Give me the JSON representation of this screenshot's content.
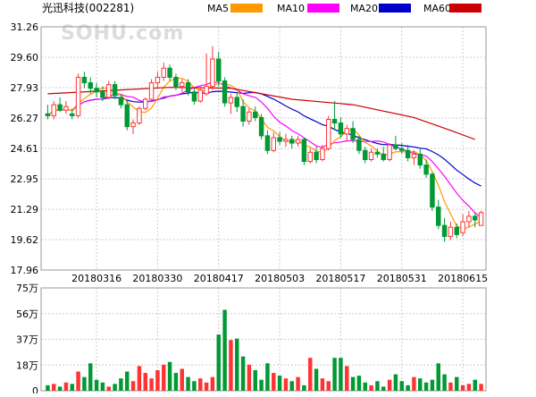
{
  "header": {
    "title": "光迅科技(002281)",
    "watermark": "SOHU.com",
    "legend": [
      {
        "name": "MA5",
        "color": "#ff9900"
      },
      {
        "name": "MA10",
        "color": "#ff00ff"
      },
      {
        "name": "MA20",
        "color": "#0000cc"
      },
      {
        "name": "MA60",
        "color": "#cc0000"
      }
    ]
  },
  "colors": {
    "up": "#ff3333",
    "down": "#009933",
    "grid": "#cccccc",
    "axis_text": "#000000"
  },
  "chart_data": [
    {
      "type": "candlestick",
      "y_ticks": [
        "31.26",
        "29.60",
        "27.93",
        "26.27",
        "24.61",
        "22.95",
        "21.29",
        "19.62",
        "17.96"
      ],
      "ylim": [
        17.96,
        31.26
      ],
      "x_tick_labels": [
        "20180316",
        "20180330",
        "20180417",
        "20180503",
        "20180517",
        "20180531",
        "20180615"
      ],
      "x_tick_index": [
        8,
        18,
        28,
        38,
        48,
        58,
        68
      ],
      "grid": true,
      "ohlc": [
        [
          26.5,
          27.0,
          26.2,
          26.4
        ],
        [
          26.4,
          27.2,
          26.2,
          27.0
        ],
        [
          27.0,
          27.4,
          26.6,
          26.7
        ],
        [
          26.7,
          27.2,
          26.5,
          26.9
        ],
        [
          26.5,
          26.8,
          26.2,
          26.4
        ],
        [
          26.4,
          28.7,
          26.3,
          28.5
        ],
        [
          28.5,
          28.8,
          27.9,
          28.2
        ],
        [
          28.2,
          28.5,
          27.6,
          27.9
        ],
        [
          27.9,
          28.2,
          27.4,
          27.7
        ],
        [
          27.7,
          28.0,
          27.2,
          27.4
        ],
        [
          27.4,
          28.3,
          27.3,
          28.1
        ],
        [
          28.1,
          28.3,
          27.3,
          27.5
        ],
        [
          27.4,
          27.6,
          26.8,
          27.0
        ],
        [
          27.0,
          27.2,
          25.6,
          25.8
        ],
        [
          25.8,
          26.2,
          25.4,
          26.0
        ],
        [
          26.0,
          26.9,
          25.9,
          26.8
        ],
        [
          26.8,
          27.4,
          26.7,
          27.3
        ],
        [
          27.3,
          28.4,
          27.2,
          28.2
        ],
        [
          28.2,
          28.8,
          27.9,
          28.5
        ],
        [
          28.5,
          29.3,
          28.3,
          29.0
        ],
        [
          29.0,
          29.2,
          28.3,
          28.5
        ],
        [
          28.5,
          28.7,
          27.8,
          28.0
        ],
        [
          28.0,
          28.4,
          27.7,
          28.2
        ],
        [
          28.2,
          28.4,
          27.5,
          27.7
        ],
        [
          27.7,
          27.9,
          27.0,
          27.2
        ],
        [
          27.2,
          28.0,
          27.1,
          27.8
        ],
        [
          27.6,
          29.8,
          27.5,
          28.0
        ],
        [
          28.0,
          30.2,
          27.8,
          29.5
        ],
        [
          29.5,
          29.9,
          28.0,
          28.3
        ],
        [
          28.3,
          28.5,
          26.9,
          27.1
        ],
        [
          27.1,
          27.6,
          26.5,
          27.4
        ],
        [
          27.4,
          27.7,
          26.6,
          26.9
        ],
        [
          26.9,
          27.3,
          25.8,
          26.1
        ],
        [
          26.1,
          26.8,
          25.9,
          26.6
        ],
        [
          26.6,
          26.9,
          26.1,
          26.3
        ],
        [
          26.3,
          26.5,
          25.1,
          25.3
        ],
        [
          25.3,
          25.6,
          24.3,
          24.5
        ],
        [
          24.5,
          25.5,
          24.4,
          25.2
        ],
        [
          25.2,
          25.5,
          24.8,
          25.0
        ],
        [
          25.0,
          25.4,
          24.7,
          25.1
        ],
        [
          25.1,
          25.3,
          24.6,
          24.9
        ],
        [
          24.9,
          25.3,
          24.7,
          25.1
        ],
        [
          25.1,
          25.2,
          23.7,
          23.9
        ],
        [
          23.9,
          24.6,
          23.8,
          24.4
        ],
        [
          24.4,
          24.7,
          23.8,
          24.0
        ],
        [
          24.0,
          24.8,
          23.9,
          24.6
        ],
        [
          24.6,
          26.4,
          24.5,
          26.2
        ],
        [
          26.2,
          27.2,
          25.6,
          26.0
        ],
        [
          26.0,
          26.3,
          25.2,
          25.4
        ],
        [
          25.4,
          25.9,
          25.0,
          25.7
        ],
        [
          25.7,
          26.1,
          24.9,
          25.1
        ],
        [
          25.1,
          25.3,
          24.3,
          24.5
        ],
        [
          24.5,
          24.7,
          23.8,
          24.0
        ],
        [
          24.0,
          24.6,
          23.9,
          24.4
        ],
        [
          24.4,
          24.6,
          24.1,
          24.3
        ],
        [
          24.3,
          24.7,
          23.9,
          24.0
        ],
        [
          24.0,
          24.9,
          23.9,
          24.8
        ],
        [
          24.8,
          25.3,
          24.5,
          24.6
        ],
        [
          24.6,
          24.9,
          24.3,
          24.5
        ],
        [
          24.5,
          24.8,
          23.9,
          24.1
        ],
        [
          24.1,
          24.5,
          23.7,
          24.3
        ],
        [
          24.3,
          24.6,
          23.5,
          23.7
        ],
        [
          23.7,
          24.0,
          23.0,
          23.2
        ],
        [
          23.2,
          23.3,
          21.2,
          21.4
        ],
        [
          21.4,
          21.8,
          20.2,
          20.4
        ],
        [
          20.4,
          20.8,
          19.5,
          19.8
        ],
        [
          19.8,
          20.6,
          19.6,
          20.3
        ],
        [
          20.3,
          20.5,
          19.7,
          19.9
        ],
        [
          20.0,
          21.0,
          19.8,
          20.6
        ],
        [
          20.6,
          21.2,
          20.3,
          20.9
        ],
        [
          20.9,
          21.1,
          20.3,
          20.7
        ],
        [
          20.4,
          21.2,
          20.4,
          21.1
        ]
      ],
      "ma_periods": [
        5,
        10,
        20,
        60
      ],
      "ma60": [
        [
          0,
          27.6
        ],
        [
          20,
          27.95
        ],
        [
          30,
          27.9
        ],
        [
          40,
          27.3
        ],
        [
          50,
          27.0
        ],
        [
          60,
          26.3
        ],
        [
          66,
          25.6
        ],
        [
          70,
          25.1
        ]
      ]
    },
    {
      "type": "bar",
      "y_ticks": [
        "75万",
        "56万",
        "37万",
        "18万",
        "0"
      ],
      "ylim": [
        0,
        75
      ],
      "values": [
        4,
        5,
        3,
        6,
        5,
        14,
        10,
        20,
        8,
        6,
        3,
        5,
        9,
        14,
        7,
        18,
        13,
        9,
        15,
        19,
        21,
        13,
        16,
        10,
        7,
        9,
        6,
        10,
        41,
        59,
        37,
        38,
        25,
        19,
        15,
        8,
        20,
        13,
        11,
        9,
        7,
        10,
        4,
        24,
        16,
        9,
        7,
        24,
        24,
        18,
        10,
        11,
        6,
        4,
        7,
        3,
        8,
        12,
        7,
        4,
        10,
        9,
        6,
        8,
        20,
        12,
        6,
        10,
        4,
        5,
        8,
        5
      ]
    }
  ]
}
